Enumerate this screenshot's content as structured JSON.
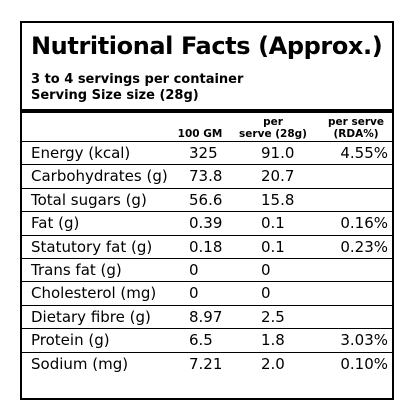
{
  "panel": {
    "title": "Nutritional Facts (Approx.)",
    "servings_line": "3 to 4 servings per container",
    "serving_size_line": "Serving Size size (28g)"
  },
  "columns": {
    "per_100g": "100 GM",
    "per_serve_line1": "per",
    "per_serve_line2": "serve (28g)",
    "rda_line1": "per serve",
    "rda_line2": "(RDA%)"
  },
  "rows": [
    {
      "name": "Energy (kcal)",
      "per_100g": "325",
      "per_serve": "91.0",
      "rda": "4.55%"
    },
    {
      "name": "Carbohydrates (g)",
      "per_100g": "73.8",
      "per_serve": "20.7",
      "rda": ""
    },
    {
      "name": "Total sugars (g)",
      "per_100g": "56.6",
      "per_serve": "15.8",
      "rda": ""
    },
    {
      "name": "Fat (g)",
      "per_100g": "0.39",
      "per_serve": "0.1",
      "rda": "0.16%"
    },
    {
      "name": "Statutory fat (g)",
      "per_100g": "0.18",
      "per_serve": "0.1",
      "rda": "0.23%"
    },
    {
      "name": "Trans fat (g)",
      "per_100g": "0",
      "per_serve": "0",
      "rda": ""
    },
    {
      "name": "Cholesterol (mg)",
      "per_100g": "0",
      "per_serve": "0",
      "rda": ""
    },
    {
      "name": "Dietary fibre (g)",
      "per_100g": "8.97",
      "per_serve": "2.5",
      "rda": ""
    },
    {
      "name": "Protein (g)",
      "per_100g": "6.5",
      "per_serve": "1.8",
      "rda": "3.03%"
    },
    {
      "name": "Sodium (mg)",
      "per_100g": "7.21",
      "per_serve": "2.0",
      "rda": "0.10%"
    }
  ]
}
